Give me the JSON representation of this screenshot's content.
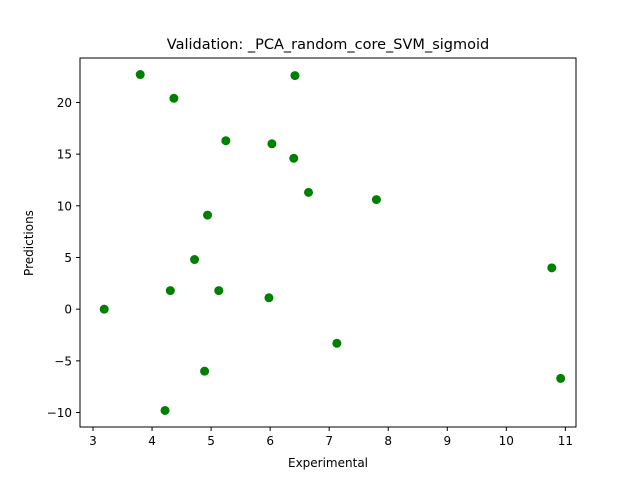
{
  "chart_data": {
    "type": "scatter",
    "title": "Validation: _PCA_random_core_SVM_sigmoid",
    "xlabel": "Experimental",
    "ylabel": "Predictions",
    "xlim": [
      2.78,
      11.18
    ],
    "ylim": [
      -11.4,
      24.3
    ],
    "xticks": [
      3,
      4,
      5,
      6,
      7,
      8,
      9,
      10,
      11
    ],
    "yticks": [
      -10,
      -5,
      0,
      5,
      10,
      15,
      20
    ],
    "grid": false,
    "marker_color": "#008000",
    "series": [
      {
        "points": [
          {
            "x": 3.8,
            "y": 22.7
          },
          {
            "x": 6.42,
            "y": 22.6
          },
          {
            "x": 4.37,
            "y": 20.4
          },
          {
            "x": 5.25,
            "y": 16.3
          },
          {
            "x": 6.03,
            "y": 16.0
          },
          {
            "x": 6.4,
            "y": 14.6
          },
          {
            "x": 6.65,
            "y": 11.3
          },
          {
            "x": 7.8,
            "y": 10.6
          },
          {
            "x": 4.94,
            "y": 9.1
          },
          {
            "x": 4.72,
            "y": 4.8
          },
          {
            "x": 10.77,
            "y": 4.0
          },
          {
            "x": 4.31,
            "y": 1.8
          },
          {
            "x": 5.13,
            "y": 1.8
          },
          {
            "x": 5.98,
            "y": 1.1
          },
          {
            "x": 3.19,
            "y": 0.0
          },
          {
            "x": 7.13,
            "y": -3.3
          },
          {
            "x": 4.89,
            "y": -6.0
          },
          {
            "x": 10.92,
            "y": -6.7
          },
          {
            "x": 4.22,
            "y": -9.8
          }
        ]
      }
    ]
  }
}
